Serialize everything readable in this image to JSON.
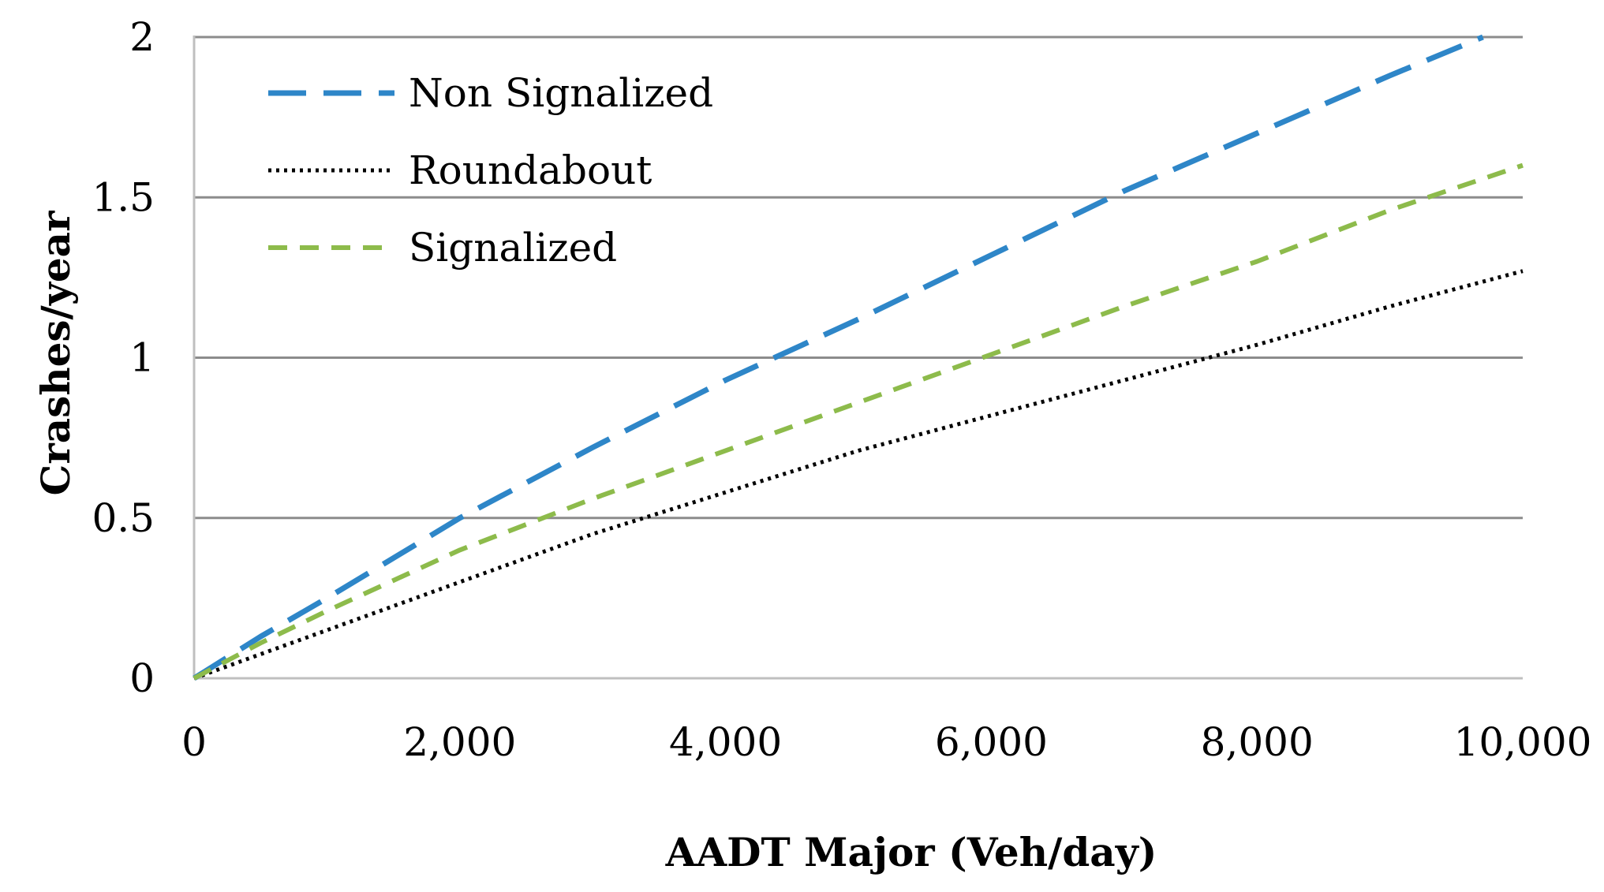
{
  "chart_data": {
    "type": "line",
    "xlabel": "AADT Major (Veh/day)",
    "ylabel": "Crashes/year",
    "xlim": [
      0,
      10000
    ],
    "ylim": [
      0,
      2
    ],
    "x_ticks": [
      0,
      2000,
      4000,
      6000,
      8000,
      10000
    ],
    "x_tick_labels": [
      "0",
      "2,000",
      "4,000",
      "6,000",
      "8,000",
      "10,000"
    ],
    "y_ticks": [
      0,
      0.5,
      1,
      1.5,
      2
    ],
    "y_tick_labels": [
      "0",
      "0.5",
      "1",
      "1.5",
      "2"
    ],
    "grid": "horizontal",
    "legend_position": "top-left",
    "series": [
      {
        "name": "Non Signalized",
        "color": "#2E86C8",
        "style": "long-dash",
        "x": [
          0,
          500,
          1000,
          2000,
          3000,
          4000,
          5000,
          6000,
          7000,
          8000,
          9000,
          9700
        ],
        "y": [
          0,
          0.13,
          0.25,
          0.5,
          0.72,
          0.93,
          1.12,
          1.32,
          1.52,
          1.7,
          1.88,
          2.0
        ]
      },
      {
        "name": "Roundabout",
        "color": "#000000",
        "style": "dotted",
        "x": [
          0,
          1000,
          2000,
          3000,
          4000,
          5000,
          6000,
          7000,
          8000,
          9000,
          10000
        ],
        "y": [
          0,
          0.15,
          0.3,
          0.45,
          0.58,
          0.71,
          0.82,
          0.93,
          1.04,
          1.16,
          1.27
        ]
      },
      {
        "name": "Signalized",
        "color": "#8DBB4B",
        "style": "short-dash",
        "x": [
          0,
          500,
          1000,
          2000,
          3000,
          4000,
          5000,
          6000,
          7000,
          8000,
          9000,
          10000
        ],
        "y": [
          0,
          0.11,
          0.21,
          0.4,
          0.56,
          0.71,
          0.86,
          1.01,
          1.16,
          1.3,
          1.46,
          1.6
        ]
      }
    ]
  }
}
